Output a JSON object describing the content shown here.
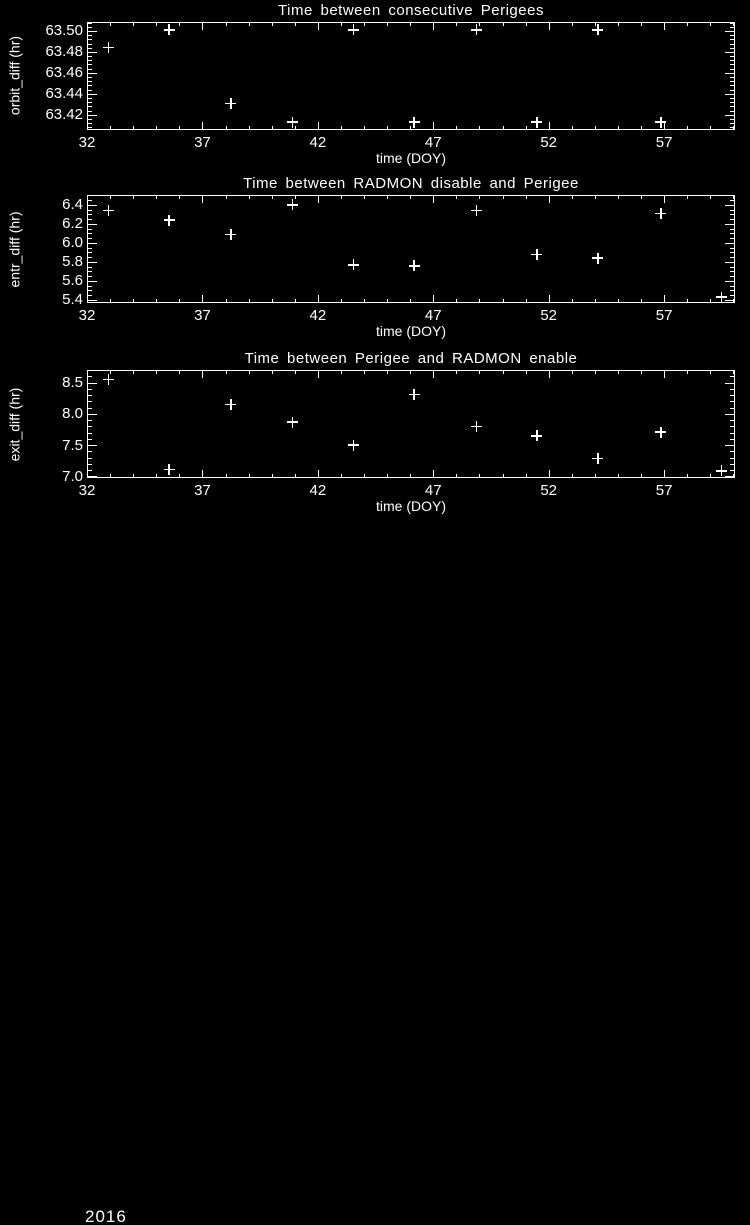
{
  "colors": {
    "background": "#000000",
    "foreground": "#ffffff"
  },
  "footer": {
    "year_label": "2016"
  },
  "chart_data": [
    {
      "type": "scatter",
      "marker": "plus",
      "grid": false,
      "title": "Time between consecutive Perigees",
      "xlabel": "time (DOY)",
      "ylabel": "orbit_diff (hr)",
      "xlim": [
        32,
        60.07
      ],
      "ylim": [
        63.406,
        63.509
      ],
      "x_tick_values": [
        32,
        37,
        42,
        47,
        52,
        57
      ],
      "x_tick_labels": [
        "32",
        "37",
        "42",
        "47",
        "52",
        "57"
      ],
      "x_minor_step": 1,
      "y_tick_values": [
        63.42,
        63.44,
        63.46,
        63.48,
        63.5
      ],
      "y_tick_labels": [
        "63.42",
        "63.44",
        "63.46",
        "63.48",
        "63.50"
      ],
      "y_minor_step": 0.004,
      "x": [
        32.94,
        35.56,
        38.23,
        40.9,
        43.54,
        46.17,
        48.88,
        51.49,
        54.13,
        56.86
      ],
      "y": [
        63.484,
        63.501,
        63.431,
        63.413,
        63.501,
        63.413,
        63.501,
        63.413,
        63.501,
        63.413
      ]
    },
    {
      "type": "scatter",
      "marker": "plus",
      "grid": false,
      "title": "Time between RADMON disable and Perigee",
      "xlabel": "time (DOY)",
      "ylabel": "entr_diff (hr)",
      "xlim": [
        32,
        60.07
      ],
      "ylim": [
        5.368,
        6.505
      ],
      "x_tick_values": [
        32,
        37,
        42,
        47,
        52,
        57
      ],
      "x_tick_labels": [
        "32",
        "37",
        "42",
        "47",
        "52",
        "57"
      ],
      "x_minor_step": 1,
      "y_tick_values": [
        5.4,
        5.6,
        5.8,
        6.0,
        6.2,
        6.4
      ],
      "y_tick_labels": [
        "5.4",
        "5.6",
        "5.8",
        "6.0",
        "6.2",
        "6.4"
      ],
      "y_minor_step": 0.05,
      "x": [
        32.94,
        35.56,
        38.23,
        40.9,
        43.54,
        46.17,
        48.88,
        51.49,
        54.13,
        56.86,
        59.49
      ],
      "y": [
        6.34,
        6.24,
        6.09,
        6.4,
        5.77,
        5.76,
        6.34,
        5.88,
        5.84,
        6.31,
        5.43
      ]
    },
    {
      "type": "scatter",
      "marker": "plus",
      "grid": false,
      "title": "Time between Perigee and RADMON enable",
      "xlabel": "time (DOY)",
      "ylabel": "exit_diff (hr)",
      "xlim": [
        32,
        60.07
      ],
      "ylim": [
        6.975,
        8.703
      ],
      "x_tick_values": [
        32,
        37,
        42,
        47,
        52,
        57
      ],
      "x_tick_labels": [
        "32",
        "37",
        "42",
        "47",
        "52",
        "57"
      ],
      "x_minor_step": 1,
      "y_tick_values": [
        7.0,
        7.5,
        8.0,
        8.5
      ],
      "y_tick_labels": [
        "7.0",
        "7.5",
        "8.0",
        "8.5"
      ],
      "y_minor_step": 0.1,
      "x": [
        32.94,
        35.56,
        38.23,
        40.9,
        43.54,
        46.17,
        48.88,
        51.49,
        54.13,
        56.86,
        59.49
      ],
      "y": [
        8.55,
        7.11,
        8.15,
        7.87,
        7.5,
        8.31,
        7.8,
        7.65,
        7.29,
        7.71,
        7.09
      ]
    }
  ]
}
